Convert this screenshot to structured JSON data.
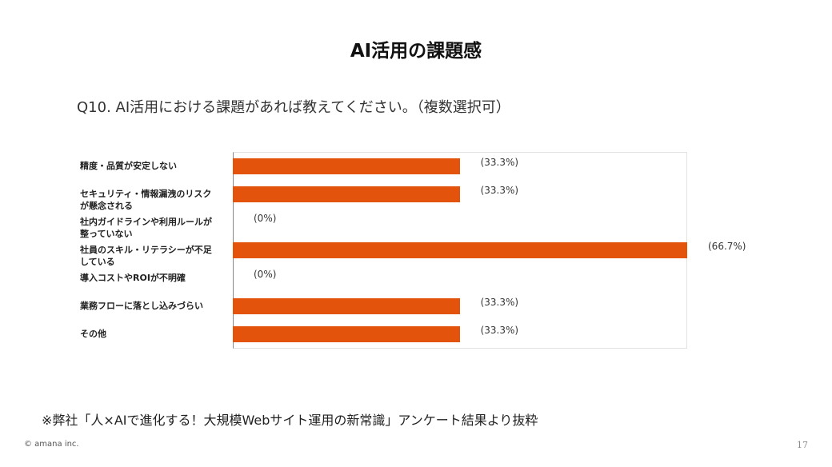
{
  "slide": {
    "title": "AI活用の課題感",
    "footnote": "※弊社「人×AIで進化する！大規模Webサイト運用の新常識」アンケート結果より抜粋",
    "copyright": "© amana inc.",
    "page": "17"
  },
  "chart_data": {
    "type": "bar",
    "orientation": "horizontal",
    "title": "Q10. AI活用における課題があれば教えてください。（複数選択可）",
    "categories": [
      "精度・品質が安定しない",
      "セキュリティ・情報漏洩のリスクが懸念される",
      "社内ガイドラインや利用ルールが整っていない",
      "社員のスキル・リテラシーが不足している",
      "導入コストやROIが不明確",
      "業務フローに落とし込みづらい",
      "その他"
    ],
    "values": [
      33.3,
      33.3,
      0,
      66.7,
      0,
      33.3,
      33.3
    ],
    "value_labels": [
      "(33.3%)",
      "(33.3%)",
      "(0%)",
      "(66.7%)",
      "(0%)",
      "(33.3%)",
      "(33.3%)"
    ],
    "color": "#e4530c",
    "xlim": [
      0,
      66.7
    ]
  }
}
